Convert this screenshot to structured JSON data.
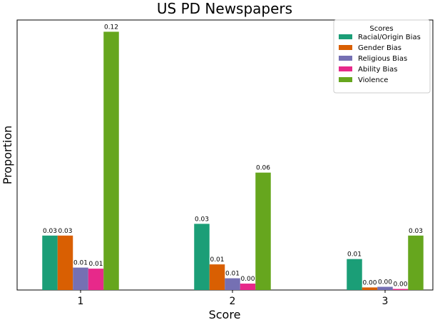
{
  "chart_data": {
    "type": "bar",
    "title": "US PD Newspapers",
    "xlabel": "Score",
    "ylabel": "Proportion",
    "categories": [
      "1",
      "2",
      "3"
    ],
    "ylim": [
      0,
      0.1265
    ],
    "grid": false,
    "legend": {
      "title": "Scores",
      "placement": "top-right"
    },
    "series": [
      {
        "name": "Racial/Origin Bias",
        "color": "#1b9e77",
        "values": [
          0.0255,
          0.031,
          0.0145
        ],
        "labels": [
          "0.03",
          "0.03",
          "0.01"
        ]
      },
      {
        "name": "Gender Bias",
        "color": "#d95f02",
        "values": [
          0.0255,
          0.012,
          0.0012
        ],
        "labels": [
          "0.03",
          "0.01",
          "0.00"
        ]
      },
      {
        "name": "Religious Bias",
        "color": "#7570b3",
        "values": [
          0.0105,
          0.0055,
          0.0015
        ],
        "labels": [
          "0.01",
          "0.01",
          "0.00"
        ]
      },
      {
        "name": "Ability Bias",
        "color": "#e7298a",
        "values": [
          0.01,
          0.003,
          0.0005
        ],
        "labels": [
          "0.01",
          "0.00",
          "0.00"
        ]
      },
      {
        "name": "Violence",
        "color": "#66a61e",
        "values": [
          0.121,
          0.055,
          0.0255
        ],
        "labels": [
          "0.12",
          "0.06",
          "0.03"
        ]
      }
    ]
  }
}
